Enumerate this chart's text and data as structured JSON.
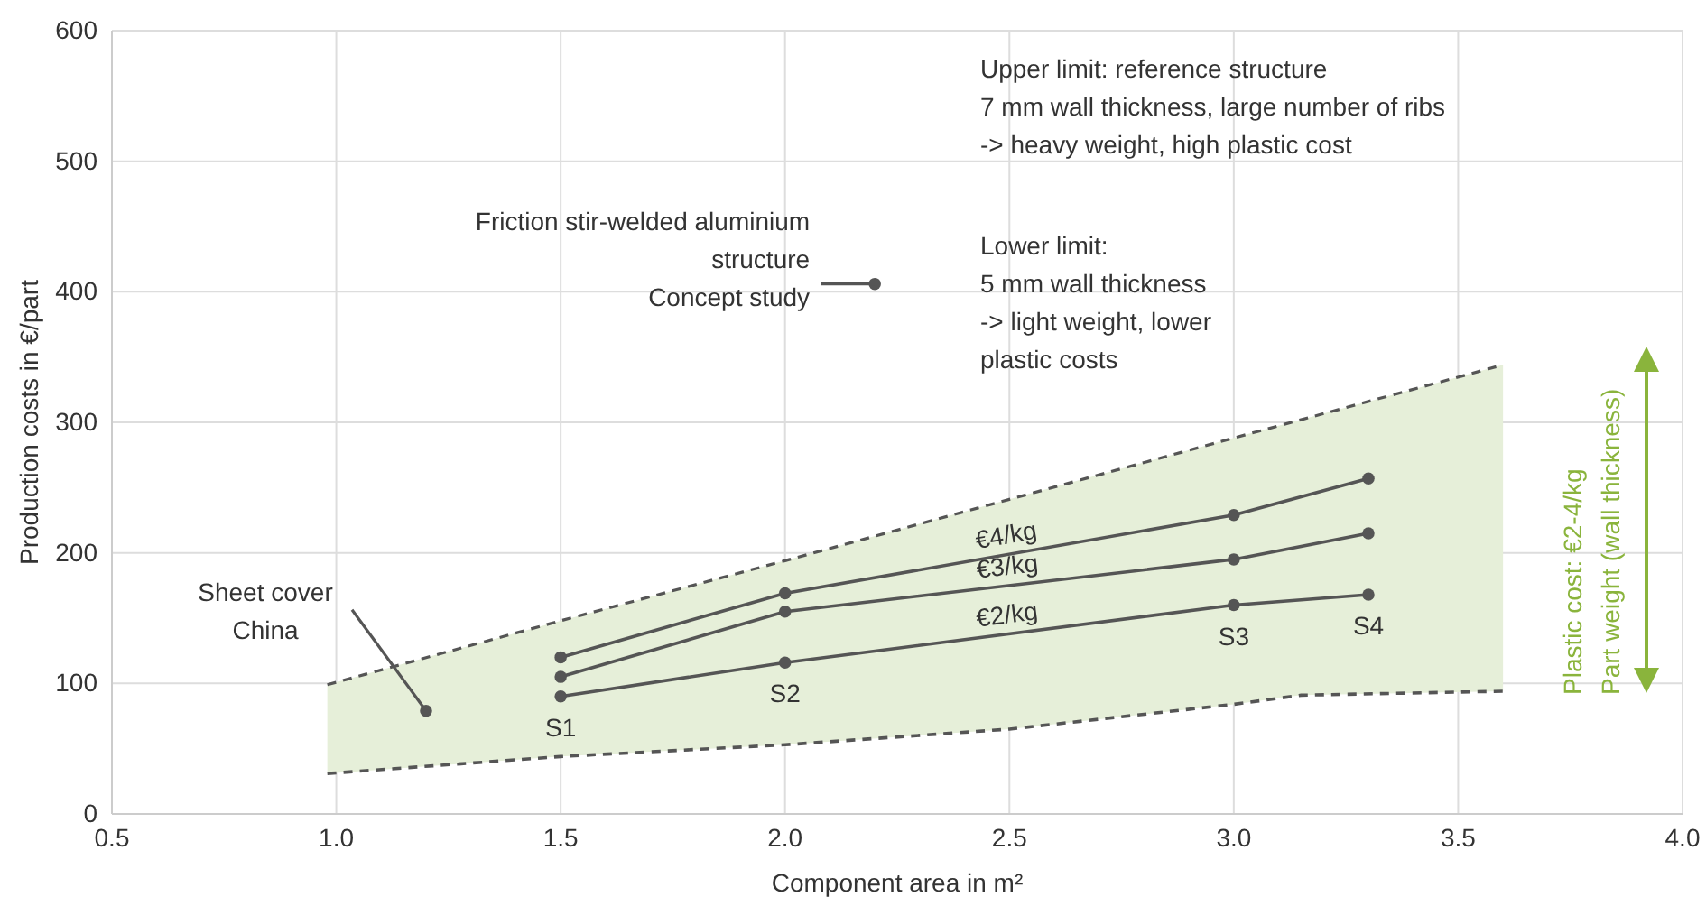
{
  "chart_data": {
    "type": "line",
    "xlabel": "Component area in m²",
    "ylabel": "Production costs in €/part",
    "xlim": [
      0.5,
      4.0
    ],
    "xticks": [
      0.5,
      {
        "value": 1,
        "label": "1.0"
      },
      1.5,
      {
        "value": 2,
        "label": "2.0"
      },
      2.5,
      {
        "value": 3,
        "label": "3.0"
      },
      3.5,
      {
        "value": 4,
        "label": "4.0"
      }
    ],
    "ylim": [
      0,
      600
    ],
    "yticks": [
      0,
      100,
      200,
      300,
      400,
      500,
      600
    ],
    "grid": true,
    "marker": "circle",
    "series": [
      {
        "type": "line",
        "color": "#555555",
        "line_style": "dashed",
        "marker": "none",
        "x": [
          0.98,
          1.5,
          2.0,
          2.5,
          3.0,
          3.15,
          3.6
        ],
        "values": [
          31,
          44,
          53,
          65,
          84,
          91,
          94
        ]
      },
      {
        "type": "area",
        "color": "#e6efd9",
        "line_style": "dashed",
        "marker": "none",
        "x": [
          0.98,
          1.5,
          2.0,
          2.5,
          3.0,
          3.15,
          3.6
        ],
        "values": [
          99,
          148,
          194,
          241,
          288,
          302,
          344
        ]
      },
      {
        "name": "€2/kg",
        "color": "#555555",
        "x": [
          1.5,
          2.0,
          3.0,
          3.3
        ],
        "values": [
          90,
          116,
          160,
          168
        ]
      },
      {
        "name": "€3/kg",
        "color": "#555555",
        "x": [
          1.5,
          2.0,
          3.0,
          3.3
        ],
        "values": [
          105,
          155,
          195,
          215
        ]
      },
      {
        "name": "€4/kg",
        "color": "#555555",
        "x": [
          1.5,
          2.0,
          3.0,
          3.3
        ],
        "values": [
          120,
          169,
          229,
          257
        ]
      },
      {
        "type": "scatter",
        "color": "#555555",
        "x": [
          1.2,
          2.2
        ],
        "values": [
          79,
          406
        ]
      }
    ],
    "annotations": [
      "Upper limit: reference structure\n7 mm wall thickness, large number of ribs\n-> heavy weight, high plastic cost",
      "Lower limit:\n5 mm wall thickness\n-> light weight, lower\nplastic costs",
      {
        "text": "Friction stir-welded aluminium\nstructure\nConcept study",
        "x": 2.2,
        "y": 406
      },
      {
        "text": "Sheet cover\nChina",
        "x": 1.2,
        "y": 79
      },
      {
        "text": "S1",
        "x": 1.5,
        "y": 90
      },
      {
        "text": "S2",
        "x": 2.0,
        "y": 116
      },
      {
        "text": "S3",
        "x": 3.0,
        "y": 160
      },
      {
        "text": "S4",
        "x": 3.3,
        "y": 168
      },
      "Plastic cost: €2-4/kg",
      "Part weight (wall thickness)"
    ]
  }
}
